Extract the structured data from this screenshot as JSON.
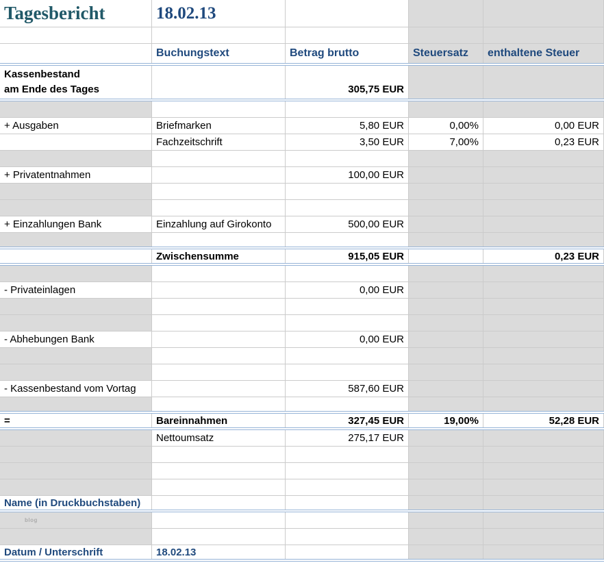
{
  "colors": {
    "heading_blue": "#1F497D",
    "title_teal": "#215968",
    "double_border_blue": "#95B3D7",
    "grid_line": "#CBCBCB",
    "empty_cell_gray": "#DBDBDB"
  },
  "report": {
    "title": "Tagesbericht",
    "date": "18.02.13",
    "column_headers": [
      "",
      "Buchungstext",
      "Betrag brutto",
      "Steuersatz",
      "enthaltene Steuer"
    ]
  },
  "sheet": {
    "rows": [
      {
        "t": "title",
        "bg": "wwwgg",
        "cells": [
          {
            "c": 0,
            "text": "Tagesbericht",
            "cls": "title-main"
          },
          {
            "c": 1,
            "text": "18.02.13",
            "cls": "title-date"
          }
        ]
      },
      {
        "t": "n",
        "bg": "wwwgg",
        "cells": []
      },
      {
        "t": "hdr",
        "bg": "wwwgg",
        "dbl": true,
        "cells": [
          {
            "c": 1,
            "text": "Buchungstext",
            "cls": "hdr"
          },
          {
            "c": 2,
            "text": "Betrag brutto",
            "cls": "hdr"
          },
          {
            "c": 3,
            "text": "Steuersatz",
            "cls": "hdr"
          },
          {
            "c": 4,
            "text": "enthaltene Steuer",
            "cls": "hdr"
          }
        ]
      },
      {
        "t": "tall",
        "bg": "wwwgg",
        "dbl": true,
        "cells": [
          {
            "c": 0,
            "text": "Kassenbestand\nam Ende des Tages",
            "cls": "b ml"
          },
          {
            "c": 2,
            "text": "305,75 EUR",
            "cls": "b r vb"
          }
        ]
      },
      {
        "t": "n",
        "bg": "gwwgg",
        "cells": []
      },
      {
        "t": "n",
        "bg": "wwwww",
        "cells": [
          {
            "c": 0,
            "text": "+ Ausgaben"
          },
          {
            "c": 1,
            "text": "Briefmarken"
          },
          {
            "c": 2,
            "text": "5,80 EUR",
            "cls": "r"
          },
          {
            "c": 3,
            "text": "0,00%",
            "cls": "r"
          },
          {
            "c": 4,
            "text": "0,00 EUR",
            "cls": "r"
          }
        ]
      },
      {
        "t": "n",
        "bg": "wwwww",
        "cells": [
          {
            "c": 1,
            "text": "Fachzeitschrift"
          },
          {
            "c": 2,
            "text": "3,50 EUR",
            "cls": "r"
          },
          {
            "c": 3,
            "text": "7,00%",
            "cls": "r"
          },
          {
            "c": 4,
            "text": "0,23 EUR",
            "cls": "r"
          }
        ]
      },
      {
        "t": "n",
        "bg": "gwwgg",
        "cells": []
      },
      {
        "t": "n",
        "bg": "wwwgg",
        "cells": [
          {
            "c": 0,
            "text": "+ Privatentnahmen"
          },
          {
            "c": 2,
            "text": "100,00 EUR",
            "cls": "r"
          }
        ]
      },
      {
        "t": "n",
        "bg": "gwwgg",
        "cells": []
      },
      {
        "t": "n",
        "bg": "gwwgg",
        "cells": []
      },
      {
        "t": "n",
        "bg": "wwwgg",
        "cells": [
          {
            "c": 0,
            "text": "+ Einzahlungen Bank"
          },
          {
            "c": 1,
            "text": "Einzahlung auf Girokonto"
          },
          {
            "c": 2,
            "text": "500,00 EUR",
            "cls": "r"
          }
        ]
      },
      {
        "t": "n",
        "bg": "gwwgg",
        "dbl": true,
        "cells": []
      },
      {
        "t": "n",
        "bg": "wwwww",
        "dbl": true,
        "cells": [
          {
            "c": 1,
            "text": "Zwischensumme",
            "cls": "b"
          },
          {
            "c": 2,
            "text": "915,05 EUR",
            "cls": "b r"
          },
          {
            "c": 4,
            "text": "0,23 EUR",
            "cls": "b r"
          }
        ]
      },
      {
        "t": "n",
        "bg": "gwwgg",
        "cells": []
      },
      {
        "t": "n",
        "bg": "wwwgg",
        "cells": [
          {
            "c": 0,
            "text": "- Privateinlagen"
          },
          {
            "c": 2,
            "text": "0,00 EUR",
            "cls": "r"
          }
        ]
      },
      {
        "t": "n",
        "bg": "gwwgg",
        "cells": []
      },
      {
        "t": "n",
        "bg": "gwwgg",
        "cells": []
      },
      {
        "t": "n",
        "bg": "wwwgg",
        "cells": [
          {
            "c": 0,
            "text": "- Abhebungen Bank"
          },
          {
            "c": 2,
            "text": "0,00 EUR",
            "cls": "r"
          }
        ]
      },
      {
        "t": "n",
        "bg": "gwwgg",
        "cells": []
      },
      {
        "t": "n",
        "bg": "gwwgg",
        "cells": []
      },
      {
        "t": "n",
        "bg": "wwwgg",
        "cells": [
          {
            "c": 0,
            "text": "- Kassenbestand vom Vortag"
          },
          {
            "c": 2,
            "text": "587,60 EUR",
            "cls": "r"
          }
        ]
      },
      {
        "t": "n",
        "bg": "gwwgg",
        "dbl": true,
        "cells": []
      },
      {
        "t": "n",
        "bg": "wwwww",
        "dbl": true,
        "cells": [
          {
            "c": 0,
            "text": "=",
            "cls": "b"
          },
          {
            "c": 1,
            "text": "Bareinnahmen",
            "cls": "b"
          },
          {
            "c": 2,
            "text": "327,45 EUR",
            "cls": "b r"
          },
          {
            "c": 3,
            "text": "19,00%",
            "cls": "b r"
          },
          {
            "c": 4,
            "text": "52,28 EUR",
            "cls": "b r"
          }
        ]
      },
      {
        "t": "n",
        "bg": "gwwgg",
        "cells": [
          {
            "c": 1,
            "text": "Nettoumsatz"
          },
          {
            "c": 2,
            "text": "275,17 EUR",
            "cls": "r"
          }
        ]
      },
      {
        "t": "n",
        "bg": "gwwgg",
        "cells": []
      },
      {
        "t": "n",
        "bg": "gwwgg",
        "cells": []
      },
      {
        "t": "n",
        "bg": "gwwgg",
        "cells": []
      },
      {
        "t": "n",
        "bg": "wwwgg",
        "dbl": true,
        "cells": [
          {
            "c": 0,
            "text": "Name (in Druckbuchstaben)",
            "cls": "blue b"
          }
        ]
      },
      {
        "t": "n",
        "bg": "gwwgg",
        "cells": [
          {
            "c": 0,
            "text": "blog",
            "cls": "wm",
            "name": "watermark"
          }
        ]
      },
      {
        "t": "n",
        "bg": "gwwgg",
        "cells": []
      },
      {
        "t": "n",
        "bg": "wwwgg",
        "dbl": true,
        "cells": [
          {
            "c": 0,
            "text": "Datum / Unterschrift",
            "cls": "blue b"
          },
          {
            "c": 1,
            "text": "18.02.13",
            "cls": "blue b"
          }
        ]
      }
    ]
  }
}
